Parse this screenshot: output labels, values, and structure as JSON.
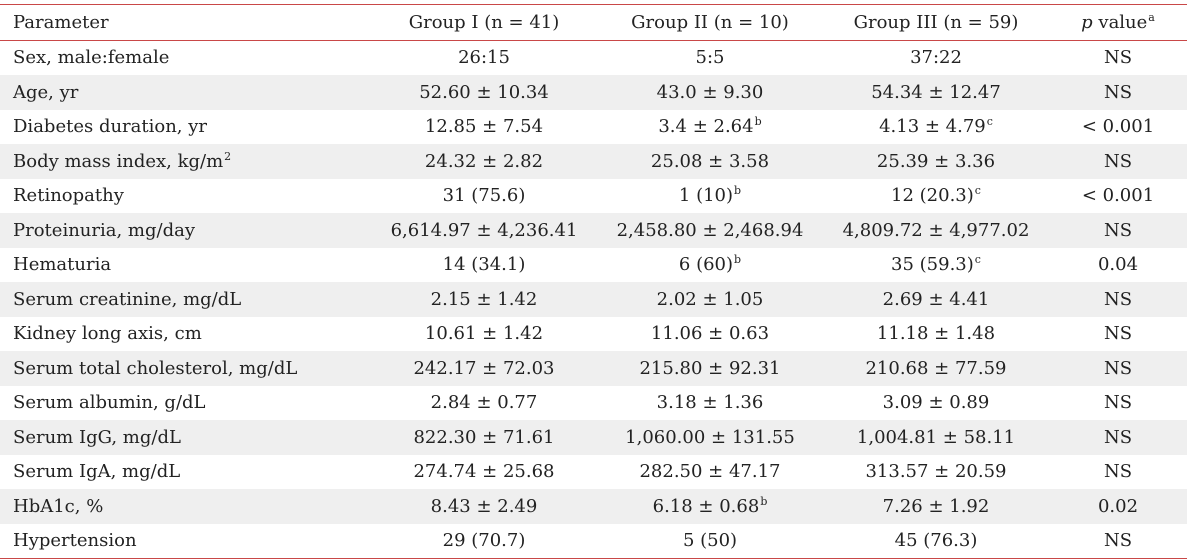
{
  "table": {
    "headers": {
      "parameter": "Parameter",
      "group1": "Group I (n = 41)",
      "group2": "Group II (n = 10)",
      "group3": "Group III (n = 59)",
      "pvalue_p": "p",
      "pvalue_rest": " value",
      "pvalue_sup": "a"
    },
    "rows": [
      {
        "param": "Sex, male:female",
        "param_sup": "",
        "g1": "26:15",
        "g2": "5:5",
        "g2_sup": "",
        "g3": "37:22",
        "g3_sup": "",
        "p": "NS"
      },
      {
        "param": "Age, yr",
        "param_sup": "",
        "g1": "52.60 ± 10.34",
        "g2": "43.0 ± 9.30",
        "g2_sup": "",
        "g3": "54.34 ± 12.47",
        "g3_sup": "",
        "p": "NS"
      },
      {
        "param": "Diabetes duration, yr",
        "param_sup": "",
        "g1": "12.85 ± 7.54",
        "g2": "3.4 ± 2.64",
        "g2_sup": "b",
        "g3": "4.13 ± 4.79",
        "g3_sup": "c",
        "p": "< 0.001"
      },
      {
        "param": "Body mass index, kg/m",
        "param_sup": "2",
        "g1": "24.32 ± 2.82",
        "g2": "25.08 ± 3.58",
        "g2_sup": "",
        "g3": "25.39 ± 3.36",
        "g3_sup": "",
        "p": "NS"
      },
      {
        "param": "Retinopathy",
        "param_sup": "",
        "g1": "31 (75.6)",
        "g2": "1 (10)",
        "g2_sup": "b",
        "g3": "12 (20.3)",
        "g3_sup": "c",
        "p": "< 0.001"
      },
      {
        "param": "Proteinuria, mg/day",
        "param_sup": "",
        "g1": "6,614.97 ± 4,236.41",
        "g2": "2,458.80 ± 2,468.94",
        "g2_sup": "",
        "g3": "4,809.72 ± 4,977.02",
        "g3_sup": "",
        "p": "NS"
      },
      {
        "param": "Hematuria",
        "param_sup": "",
        "g1": "14 (34.1)",
        "g2": "6 (60)",
        "g2_sup": "b",
        "g3": "35 (59.3)",
        "g3_sup": "c",
        "p": "0.04"
      },
      {
        "param": "Serum creatinine, mg/dL",
        "param_sup": "",
        "g1": "2.15 ± 1.42",
        "g2": "2.02 ± 1.05",
        "g2_sup": "",
        "g3": "2.69 ± 4.41",
        "g3_sup": "",
        "p": "NS"
      },
      {
        "param": "Kidney long axis, cm",
        "param_sup": "",
        "g1": "10.61 ± 1.42",
        "g2": "11.06 ± 0.63",
        "g2_sup": "",
        "g3": "11.18 ± 1.48",
        "g3_sup": "",
        "p": "NS"
      },
      {
        "param": "Serum total cholesterol, mg/dL",
        "param_sup": "",
        "g1": "242.17 ± 72.03",
        "g2": "215.80 ± 92.31",
        "g2_sup": "",
        "g3": "210.68 ± 77.59",
        "g3_sup": "",
        "p": "NS"
      },
      {
        "param": "Serum albumin, g/dL",
        "param_sup": "",
        "g1": "2.84 ± 0.77",
        "g2": "3.18 ± 1.36",
        "g2_sup": "",
        "g3": "3.09 ± 0.89",
        "g3_sup": "",
        "p": "NS"
      },
      {
        "param": "Serum IgG, mg/dL",
        "param_sup": "",
        "g1": "822.30 ± 71.61",
        "g2": "1,060.00 ± 131.55",
        "g2_sup": "",
        "g3": "1,004.81 ± 58.11",
        "g3_sup": "",
        "p": "NS"
      },
      {
        "param": "Serum IgA, mg/dL",
        "param_sup": "",
        "g1": "274.74 ± 25.68",
        "g2": "282.50 ± 47.17",
        "g2_sup": "",
        "g3": "313.57 ± 20.59",
        "g3_sup": "",
        "p": "NS"
      },
      {
        "param": "HbA1c, %",
        "param_sup": "",
        "g1": "8.43 ± 2.49",
        "g2": "6.18 ± 0.68",
        "g2_sup": "b",
        "g3": "7.26 ± 1.92",
        "g3_sup": "",
        "p": "0.02"
      },
      {
        "param": "Hypertension",
        "param_sup": "",
        "g1": "29 (70.7)",
        "g2": "5 (50)",
        "g2_sup": "",
        "g3": "45 (76.3)",
        "g3_sup": "",
        "p": "NS"
      }
    ]
  }
}
